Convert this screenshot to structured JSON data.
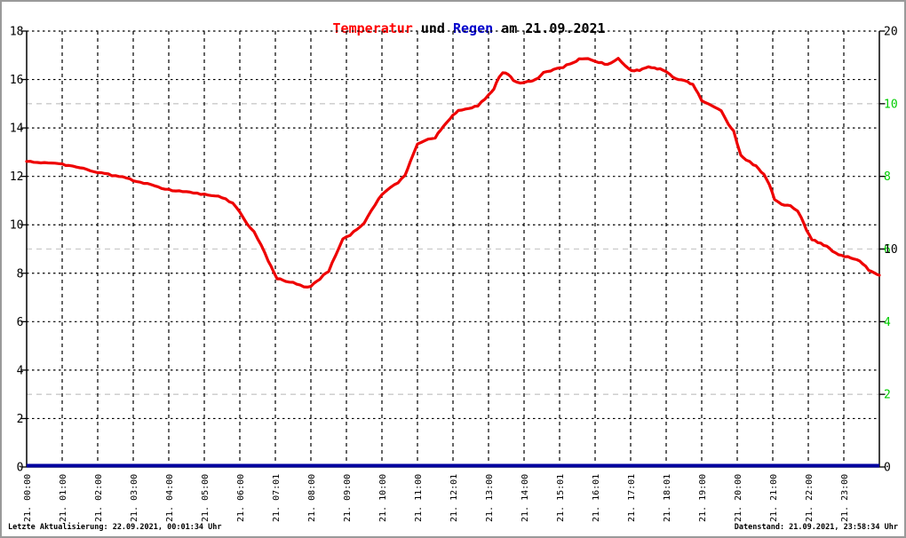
{
  "title": {
    "part_temperatur": "Temperatur",
    "part_und": " und ",
    "part_regen": "Regen",
    "part_date": " am 21.09.2021"
  },
  "footer": {
    "last_update": "Letzte Aktualisierung: 22.09.2021, 00:01:34 Uhr",
    "data_state": "Datenstand: 21.09.2021, 23:58:34 Uhr"
  },
  "colors": {
    "temperature_line": "#ee0000",
    "rain_line": "#0000a0",
    "green_axis_text": "#00cc00",
    "grid_black": "#000000",
    "grid_gray": "#c9c9c9",
    "axis_black": "#000000",
    "title_red": "#ff0000",
    "title_blue": "#0000cc"
  },
  "chart_data": {
    "type": "line",
    "title": "Temperatur und Regen am 21.09.2021",
    "grid": "on",
    "x_axis": {
      "range_hours": [
        0,
        24
      ],
      "tick_interval_hours": 1,
      "labels": [
        "21. 00:00",
        "21. 01:00",
        "21. 02:00",
        "21. 03:00",
        "21. 04:00",
        "21. 05:00",
        "21. 06:00",
        "21. 07:01",
        "21. 08:00",
        "21. 09:00",
        "21. 10:00",
        "21. 11:00",
        "21. 12:01",
        "21. 13:00",
        "21. 14:00",
        "21. 15:01",
        "21. 16:01",
        "21. 17:01",
        "21. 18:01",
        "21. 19:00",
        "21. 20:00",
        "21. 21:00",
        "21. 22:00",
        "21. 23:00"
      ]
    },
    "y_axis_left": {
      "range": [
        0,
        18
      ],
      "ticks": [
        0,
        2,
        4,
        6,
        8,
        10,
        12,
        14,
        16,
        18
      ]
    },
    "y_axis_right_black": {
      "range": [
        0,
        20
      ],
      "ticks": [
        0,
        10,
        20
      ]
    },
    "y_axis_right_green": {
      "range": [
        0,
        12
      ],
      "ticks": [
        2,
        4,
        6,
        8,
        10
      ]
    },
    "gray_gridlines_at_green_values": [
      2,
      6,
      10
    ],
    "series": [
      {
        "name": "Temperatur",
        "color": "#ee0000",
        "axis": "left",
        "points_hour_degC": [
          [
            0.0,
            12.62
          ],
          [
            0.3,
            12.59
          ],
          [
            0.6,
            12.56
          ],
          [
            0.9,
            12.51
          ],
          [
            1.2,
            12.44
          ],
          [
            1.5,
            12.38
          ],
          [
            1.8,
            12.24
          ],
          [
            2.0,
            12.17
          ],
          [
            2.3,
            12.08
          ],
          [
            2.6,
            12.0
          ],
          [
            2.9,
            11.9
          ],
          [
            3.1,
            11.77
          ],
          [
            3.4,
            11.7
          ],
          [
            3.6,
            11.58
          ],
          [
            4.0,
            11.44
          ],
          [
            4.3,
            11.4
          ],
          [
            4.6,
            11.35
          ],
          [
            5.0,
            11.25
          ],
          [
            5.3,
            11.18
          ],
          [
            5.5,
            11.14
          ],
          [
            5.8,
            10.9
          ],
          [
            6.0,
            10.55
          ],
          [
            6.2,
            10.05
          ],
          [
            6.4,
            9.7
          ],
          [
            6.6,
            9.2
          ],
          [
            6.8,
            8.5
          ],
          [
            6.95,
            8.05
          ],
          [
            7.05,
            7.78
          ],
          [
            7.3,
            7.68
          ],
          [
            7.5,
            7.62
          ],
          [
            7.8,
            7.46
          ],
          [
            8.0,
            7.45
          ],
          [
            8.15,
            7.65
          ],
          [
            8.35,
            7.9
          ],
          [
            8.5,
            8.1
          ],
          [
            8.7,
            8.75
          ],
          [
            8.9,
            9.4
          ],
          [
            9.1,
            9.58
          ],
          [
            9.3,
            9.8
          ],
          [
            9.5,
            10.05
          ],
          [
            9.7,
            10.6
          ],
          [
            10.0,
            11.25
          ],
          [
            10.15,
            11.45
          ],
          [
            10.45,
            11.75
          ],
          [
            10.65,
            12.05
          ],
          [
            10.8,
            12.6
          ],
          [
            11.0,
            13.34
          ],
          [
            11.3,
            13.53
          ],
          [
            11.5,
            13.6
          ],
          [
            11.65,
            13.9
          ],
          [
            12.0,
            14.52
          ],
          [
            12.15,
            14.7
          ],
          [
            12.45,
            14.8
          ],
          [
            12.7,
            14.92
          ],
          [
            13.0,
            15.36
          ],
          [
            13.15,
            15.62
          ],
          [
            13.3,
            16.09
          ],
          [
            13.4,
            16.28
          ],
          [
            13.55,
            16.2
          ],
          [
            13.7,
            15.98
          ],
          [
            13.9,
            15.84
          ],
          [
            14.1,
            15.92
          ],
          [
            14.25,
            15.98
          ],
          [
            14.4,
            16.03
          ],
          [
            14.55,
            16.28
          ],
          [
            14.75,
            16.36
          ],
          [
            15.0,
            16.46
          ],
          [
            15.3,
            16.64
          ],
          [
            15.55,
            16.83
          ],
          [
            15.8,
            16.88
          ],
          [
            16.1,
            16.72
          ],
          [
            16.35,
            16.6
          ],
          [
            16.65,
            16.88
          ],
          [
            16.95,
            16.42
          ],
          [
            17.1,
            16.35
          ],
          [
            17.25,
            16.4
          ],
          [
            17.5,
            16.53
          ],
          [
            17.75,
            16.46
          ],
          [
            18.0,
            16.35
          ],
          [
            18.1,
            16.2
          ],
          [
            18.35,
            15.98
          ],
          [
            18.6,
            15.91
          ],
          [
            18.75,
            15.8
          ],
          [
            18.9,
            15.43
          ],
          [
            19.0,
            15.1
          ],
          [
            19.2,
            14.99
          ],
          [
            19.45,
            14.81
          ],
          [
            19.55,
            14.7
          ],
          [
            19.65,
            14.44
          ],
          [
            19.75,
            14.15
          ],
          [
            19.9,
            13.89
          ],
          [
            20.0,
            13.34
          ],
          [
            20.1,
            12.9
          ],
          [
            20.25,
            12.68
          ],
          [
            20.45,
            12.5
          ],
          [
            20.6,
            12.32
          ],
          [
            20.75,
            12.06
          ],
          [
            20.9,
            11.69
          ],
          [
            21.05,
            11.03
          ],
          [
            21.25,
            10.85
          ],
          [
            21.5,
            10.78
          ],
          [
            21.7,
            10.59
          ],
          [
            21.8,
            10.3
          ],
          [
            21.95,
            9.75
          ],
          [
            22.1,
            9.38
          ],
          [
            22.35,
            9.24
          ],
          [
            22.6,
            9.02
          ],
          [
            22.85,
            8.76
          ],
          [
            23.2,
            8.65
          ],
          [
            23.45,
            8.5
          ],
          [
            23.7,
            8.14
          ],
          [
            23.95,
            7.95
          ],
          [
            24.0,
            7.92
          ]
        ]
      },
      {
        "name": "Regen",
        "color": "#0000a0",
        "axis": "right_black",
        "points_hour_mm": [
          [
            0,
            0
          ],
          [
            24,
            0
          ]
        ]
      }
    ]
  }
}
